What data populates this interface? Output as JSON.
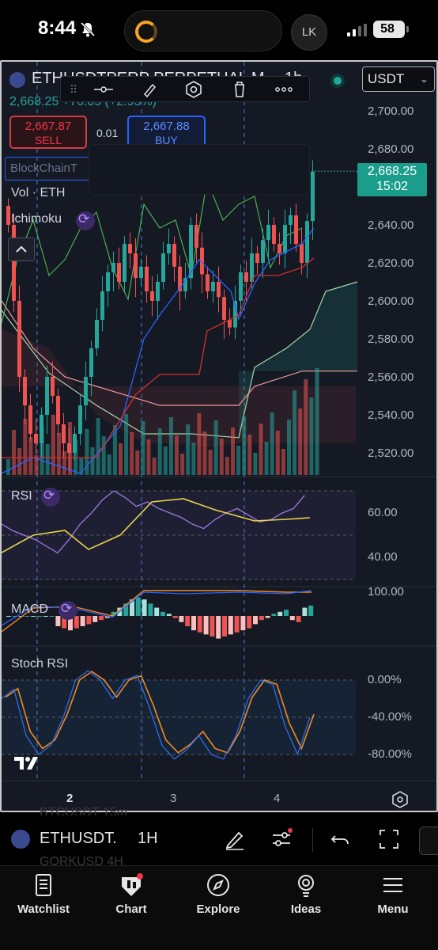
{
  "status_bar": {
    "time": "8:44",
    "avatar_initials": "LK",
    "battery": "58"
  },
  "header": {
    "symbol_title": "ETHUSDTPERP PERPETUAL M...",
    "timeframe": "1h",
    "currency": "USDT",
    "price_line": "2,668.25  +76.05 (+2.93%)"
  },
  "trade": {
    "sell_price": "2,667.87",
    "sell_label": "SELL",
    "spread": "0.01",
    "buy_price": "2,667.88",
    "buy_label": "BUY",
    "broker": "BlockChainT"
  },
  "drawing_toolbar": {
    "icons": [
      "drag-handle-icon",
      "line-tool-icon",
      "brush-icon",
      "settings-hex-icon",
      "trash-icon",
      "more-icon"
    ]
  },
  "indicators": {
    "volume": "Vol · ETH",
    "ichimoku": "Ichimoku",
    "rsi": "RSI",
    "macd": "MACD",
    "stoch_rsi": "Stoch RSI"
  },
  "price_axis": [
    "2,700.00",
    "2,680.00",
    "2,640.00",
    "2,620.00",
    "2,600.00",
    "2,580.00",
    "2,560.00",
    "2,540.00",
    "2,520.00"
  ],
  "last_price_tag": {
    "price": "2,668.25",
    "countdown": "15:02"
  },
  "rsi_axis": [
    "60.00",
    "40.00"
  ],
  "macd_axis": [
    "100.00"
  ],
  "stoch_axis": [
    "0.00%",
    "-40.00%",
    "-80.00%"
  ],
  "time_axis": [
    "2",
    "3",
    "4"
  ],
  "symbol_bar": {
    "symbol": "ETHUSDT.",
    "interval": "1H",
    "ghost_1": "BTCUSDT          15m",
    "ghost_2": "GORKUSD          4H"
  },
  "tabs": [
    {
      "label": "Watchlist",
      "icon": "book-icon"
    },
    {
      "label": "Chart",
      "icon": "chart-icon"
    },
    {
      "label": "Explore",
      "icon": "compass-icon"
    },
    {
      "label": "Ideas",
      "icon": "lightbulb-icon"
    },
    {
      "label": "Menu",
      "icon": "hamburger-icon"
    }
  ],
  "colors": {
    "up": "#26a69a",
    "down": "#ef5350",
    "accent": "#2962ff",
    "rsi_line": "#9c7ae0",
    "rsi_ma": "#e8d44d",
    "stoch_k": "#2e6be6",
    "stoch_d": "#f08a24"
  },
  "chart_data": {
    "type": "line",
    "title": "ETHUSDTPERP PERPETUAL M...",
    "xlabel": "",
    "ylabel": "",
    "ylim": [
      2510,
      2710
    ],
    "x_ticks": [
      "2",
      "3",
      "4"
    ],
    "last": 2668.25,
    "candles_close": [
      2640,
      2600,
      2560,
      2545,
      2530,
      2525,
      2540,
      2560,
      2550,
      2535,
      2525,
      2520,
      2530,
      2545,
      2560,
      2575,
      2590,
      2605,
      2615,
      2620,
      2610,
      2630,
      2625,
      2612,
      2618,
      2605,
      2600,
      2610,
      2625,
      2630,
      2618,
      2605,
      2612,
      2640,
      2628,
      2614,
      2605,
      2610,
      2602,
      2590,
      2586,
      2600,
      2615,
      2610,
      2625,
      2620,
      2632,
      2640,
      2630,
      2625,
      2640,
      2645,
      2630,
      2620,
      2642,
      2668
    ],
    "rsi": [
      55,
      52,
      50,
      48,
      45,
      42,
      48,
      55,
      60,
      66,
      70,
      67,
      63,
      65,
      62,
      60,
      58,
      55,
      53,
      57,
      60,
      62,
      59,
      56,
      57,
      60,
      62,
      68
    ],
    "stoch_rsi": [
      -20,
      -10,
      -60,
      -80,
      -70,
      -40,
      0,
      10,
      0,
      -20,
      0,
      5,
      -30,
      -70,
      -85,
      -75,
      -60,
      -80,
      -85,
      -60,
      -20,
      0,
      -5,
      -50,
      -80,
      -40
    ]
  }
}
